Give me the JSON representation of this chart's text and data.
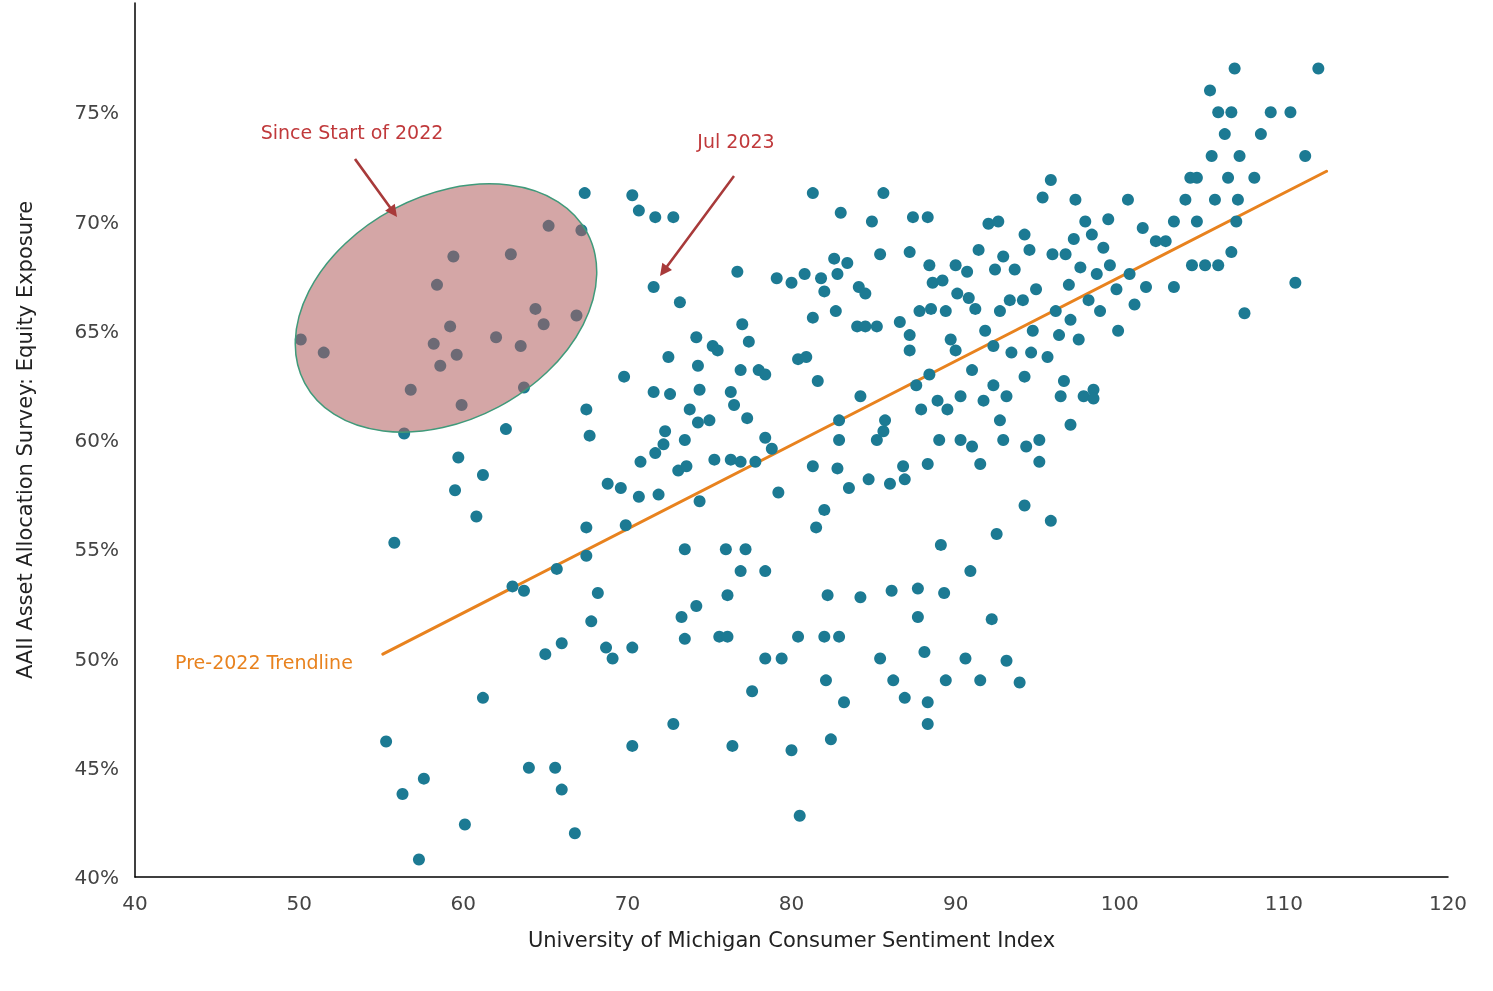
{
  "chart_data": {
    "type": "scatter",
    "xlabel": "University of Michigan Consumer Sentiment Index",
    "ylabel": "AAII Asset Allocation Survey: Equity Exposure",
    "xlim": [
      40,
      120
    ],
    "xticks": [
      40,
      50,
      60,
      70,
      80,
      90,
      100,
      110,
      120
    ],
    "ylim": [
      40,
      80
    ],
    "yticks": [
      {
        "value": 40,
        "label": "40%"
      },
      {
        "value": 45,
        "label": "45%"
      },
      {
        "value": 50,
        "label": "50%"
      },
      {
        "value": 55,
        "label": "55%"
      },
      {
        "value": 60,
        "label": "60%"
      },
      {
        "value": 65,
        "label": "65%"
      },
      {
        "value": 70,
        "label": "70%"
      },
      {
        "value": 75,
        "label": "75%"
      }
    ],
    "grid": false,
    "legend": false,
    "marker": "circle",
    "annotations": [
      "Since Start of 2022",
      "Jul 2023"
    ],
    "series": [
      {
        "type": "scatter",
        "color": "#1c7a93",
        "x": [
          50.1,
          51.5,
          56.8,
          58.4,
          59.4,
          59.2,
          58.2,
          58.6,
          59.6,
          59.9,
          62.9,
          62.0,
          63.5,
          64.4,
          64.9,
          65.2,
          67.2,
          66.9,
          71.6,
          67.4,
          70.3,
          70.7,
          71.7,
          72.8,
          56.4,
          59.7,
          59.5,
          61.2,
          60.8,
          62.6,
          63.7,
          55.8,
          55.3,
          56.3,
          57.6,
          57.3,
          60.1,
          61.2,
          63.0,
          63.7,
          64.0,
          65.6,
          66.0,
          66.8,
          65.0,
          66.0,
          65.7,
          67.5,
          67.7,
          67.5,
          67.5,
          67.8,
          68.2,
          68.7,
          69.1,
          69.6,
          68.8,
          69.8,
          69.9,
          70.3,
          70.3,
          70.8,
          70.7,
          71.6,
          71.7,
          71.9,
          72.2,
          72.3,
          72.5,
          72.6,
          73.2,
          73.5,
          73.1,
          73.6,
          73.8,
          74.2,
          74.3,
          74.4,
          74.3,
          74.4,
          73.5,
          73.3,
          74.2,
          73.5,
          72.8,
          75.2,
          75.5,
          75.0,
          75.3,
          76.3,
          76.3,
          76.5,
          76.7,
          77.0,
          77.4,
          76.9,
          77.3,
          76.9,
          77.8,
          76.9,
          76.0,
          77.2,
          76.1,
          75.6,
          76.1,
          76.4,
          77.6,
          78.0,
          78.4,
          78.4,
          78.8,
          79.2,
          78.4,
          78.4,
          79.4,
          79.1,
          80.0,
          80.5,
          80.4,
          80.0,
          80.8,
          81.3,
          81.3,
          80.4,
          80.9,
          81.3,
          81.5,
          82.0,
          81.6,
          81.8,
          82.0,
          82.0,
          82.2,
          82.1,
          82.4,
          82.6,
          82.8,
          82.7,
          82.9,
          82.9,
          82.8,
          82.9,
          83.2,
          83.0,
          83.5,
          83.4,
          84.1,
          84.0,
          84.5,
          84.2,
          84.2,
          84.5,
          84.7,
          84.9,
          85.2,
          85.2,
          85.4,
          85.6,
          85.4,
          85.6,
          85.7,
          86.0,
          86.1,
          86.2,
          86.6,
          86.8,
          86.9,
          86.9,
          87.2,
          87.2,
          87.2,
          87.4,
          87.6,
          87.7,
          87.7,
          87.8,
          87.9,
          88.1,
          88.3,
          88.4,
          88.3,
          88.3,
          88.3,
          88.4,
          88.5,
          88.6,
          88.9,
          89.0,
          89.1,
          89.2,
          89.4,
          89.5,
          89.3,
          89.4,
          89.7,
          90.0,
          90.0,
          90.1,
          90.3,
          90.3,
          90.6,
          90.8,
          90.9,
          91.0,
          90.7,
          91.0,
          91.2,
          91.4,
          91.5,
          91.5,
          91.7,
          91.8,
          92.0,
          92.2,
          92.3,
          92.3,
          92.4,
          92.5,
          92.6,
          92.7,
          92.7,
          92.9,
          92.9,
          93.1,
          93.1,
          93.3,
          93.4,
          93.6,
          93.9,
          94.1,
          94.2,
          94.2,
          94.2,
          94.3,
          94.5,
          94.6,
          94.7,
          94.9,
          95.1,
          95.1,
          95.3,
          95.6,
          95.8,
          95.8,
          95.9,
          96.1,
          96.3,
          96.4,
          96.6,
          96.7,
          96.9,
          97.0,
          97.0,
          97.2,
          97.3,
          97.5,
          97.6,
          97.8,
          97.9,
          98.1,
          98.3,
          98.4,
          98.4,
          98.6,
          98.8,
          99.0,
          99.3,
          99.4,
          99.8,
          99.9,
          100.5,
          100.6,
          100.9,
          101.4,
          101.6,
          102.2,
          102.8,
          103.3,
          103.3,
          104.0,
          104.3,
          104.4,
          104.7,
          104.7,
          105.2,
          105.5,
          105.6,
          105.8,
          106.0,
          106.0,
          106.4,
          106.6,
          106.8,
          107.0,
          106.8,
          107.1,
          107.2,
          107.3,
          107.6,
          108.2,
          108.6,
          109.2,
          110.4,
          110.7,
          111.3,
          112.1
        ],
        "values": [
          64.6,
          64.0,
          62.3,
          67.1,
          68.4,
          65.2,
          64.4,
          63.4,
          63.9,
          61.6,
          68.5,
          64.7,
          64.3,
          66.0,
          65.3,
          69.8,
          69.6,
          65.7,
          67.0,
          71.3,
          71.2,
          70.5,
          70.2,
          70.2,
          60.3,
          59.2,
          57.7,
          58.4,
          56.5,
          60.5,
          62.4,
          55.3,
          46.2,
          43.8,
          44.5,
          40.8,
          42.4,
          48.2,
          53.3,
          53.1,
          45.0,
          45.0,
          44.0,
          42.0,
          50.2,
          50.7,
          54.1,
          61.4,
          60.2,
          56.0,
          54.7,
          51.7,
          53.0,
          50.5,
          50.0,
          57.8,
          58.0,
          62.9,
          56.1,
          46.0,
          50.5,
          59.0,
          57.4,
          62.2,
          59.4,
          57.5,
          59.8,
          60.4,
          63.8,
          62.1,
          66.3,
          60.0,
          58.6,
          58.8,
          61.4,
          64.7,
          63.4,
          62.3,
          60.8,
          57.2,
          55.0,
          51.9,
          52.4,
          50.9,
          47.0,
          64.3,
          64.1,
          60.9,
          59.1,
          59.1,
          62.2,
          61.6,
          67.7,
          65.3,
          64.5,
          63.2,
          61.0,
          59.0,
          59.0,
          54.0,
          55.0,
          55.0,
          52.9,
          51.0,
          51.0,
          46.0,
          48.5,
          63.2,
          63.0,
          60.1,
          59.6,
          57.6,
          54.0,
          50.0,
          50.0,
          67.4,
          45.8,
          42.8,
          51.0,
          67.2,
          67.6,
          71.3,
          65.6,
          63.7,
          63.8,
          58.8,
          56.0,
          56.8,
          62.7,
          67.4,
          66.8,
          51.0,
          52.9,
          49.0,
          46.3,
          68.3,
          67.6,
          65.9,
          60.9,
          60.0,
          58.7,
          51.0,
          48.0,
          70.4,
          57.8,
          68.1,
          67.0,
          65.2,
          65.2,
          62.0,
          52.8,
          66.7,
          58.2,
          70.0,
          65.2,
          60.0,
          50.0,
          71.3,
          68.5,
          60.4,
          60.9,
          58.0,
          53.1,
          49.0,
          65.4,
          58.8,
          58.2,
          48.2,
          68.6,
          64.8,
          64.1,
          70.2,
          62.5,
          53.2,
          51.9,
          65.9,
          61.4,
          50.3,
          70.2,
          68.0,
          48.0,
          47.0,
          58.9,
          63.0,
          66.0,
          67.2,
          61.8,
          60.0,
          55.2,
          67.3,
          65.9,
          61.4,
          53.0,
          49.0,
          64.6,
          64.1,
          68.0,
          66.7,
          62.0,
          60.0,
          50.0,
          66.5,
          54.0,
          59.7,
          67.7,
          63.2,
          66.0,
          68.7,
          58.9,
          49.0,
          61.8,
          65.0,
          69.9,
          51.8,
          64.3,
          62.5,
          67.8,
          55.7,
          70.0,
          65.9,
          60.9,
          60.0,
          68.4,
          49.9,
          62.0,
          66.4,
          64.0,
          67.8,
          48.9,
          66.4,
          69.4,
          57.0,
          62.9,
          59.7,
          68.7,
          64.0,
          65.0,
          66.9,
          60.0,
          59.0,
          71.1,
          63.8,
          71.9,
          56.3,
          68.5,
          65.9,
          64.8,
          62.0,
          62.7,
          68.5,
          67.1,
          65.5,
          60.7,
          69.2,
          71.0,
          64.6,
          67.9,
          62.0,
          70.0,
          66.4,
          69.4,
          62.3,
          61.9,
          67.6,
          65.9,
          68.8,
          70.1,
          68.0,
          66.9,
          65.0,
          71.0,
          67.6,
          66.2,
          69.7,
          67.0,
          69.1,
          69.1,
          67.0,
          70.0,
          71.0,
          72.0,
          68.0,
          70.0,
          72.0,
          68.0,
          76.0,
          73.0,
          71.0,
          75.0,
          68.0,
          74.0,
          72.0,
          75.0,
          77.0,
          68.6,
          70.0,
          71.0,
          73.0,
          65.8,
          72.0,
          74.0,
          75.0,
          75.0,
          67.2,
          73.0,
          77.0
        ]
      },
      {
        "type": "line",
        "name": "Pre-2022 Trendline",
        "color": "#e8821e",
        "marker": "none",
        "x": [
          55.1,
          112.6
        ],
        "values": [
          50.2,
          72.3
        ]
      }
    ]
  }
}
